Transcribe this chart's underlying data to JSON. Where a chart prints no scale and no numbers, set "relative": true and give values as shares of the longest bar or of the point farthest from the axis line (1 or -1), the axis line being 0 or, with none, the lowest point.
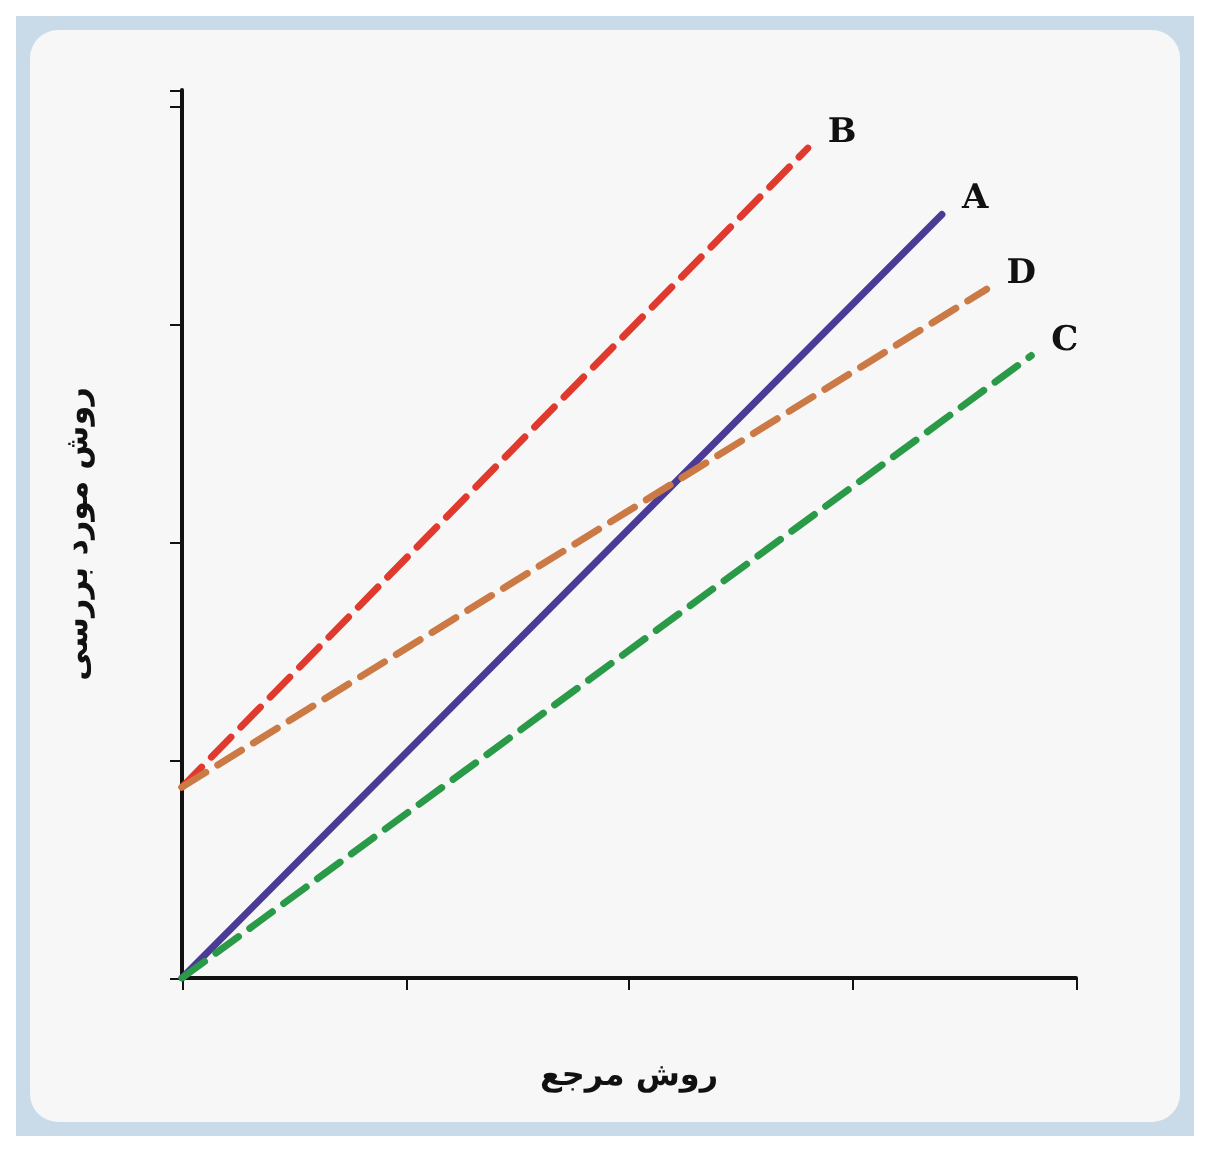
{
  "chart_data": {
    "type": "line",
    "relative": true,
    "xlabel": "روش مرجع",
    "ylabel": "روش مورد بررسی",
    "categories": [
      null,
      null,
      null,
      null,
      null,
      null,
      null,
      null,
      null,
      null,
      null,
      null,
      null,
      null,
      null,
      null,
      null,
      null,
      null,
      null,
      null
    ],
    "marker": "none",
    "legend": false,
    "grid": false,
    "series": [
      {
        "name": "A",
        "color": "#4b3a96",
        "line_style": "solid",
        "values": [
          0,
          null,
          null,
          null,
          null,
          null,
          null,
          null,
          null,
          null,
          null,
          null,
          null,
          null,
          null,
          null,
          null,
          0.92,
          null,
          null,
          null
        ]
      },
      {
        "name": "B",
        "color": "#e03a2e",
        "line_style": "dashed",
        "values": [
          0.23,
          null,
          null,
          null,
          null,
          null,
          null,
          null,
          null,
          null,
          null,
          null,
          null,
          null,
          1,
          null,
          null,
          null,
          null,
          null,
          null
        ]
      },
      {
        "name": "C",
        "color": "#2a9a48",
        "line_style": "dashed",
        "values": [
          0,
          null,
          null,
          null,
          null,
          null,
          null,
          null,
          null,
          null,
          null,
          null,
          null,
          null,
          null,
          null,
          null,
          null,
          null,
          0.75,
          null
        ]
      },
      {
        "name": "D",
        "color": "#cc7a45",
        "line_style": "dashed",
        "values": [
          0.23,
          null,
          null,
          null,
          null,
          null,
          null,
          null,
          null,
          null,
          null,
          null,
          null,
          null,
          null,
          null,
          null,
          null,
          0.83,
          null,
          null
        ]
      }
    ]
  }
}
